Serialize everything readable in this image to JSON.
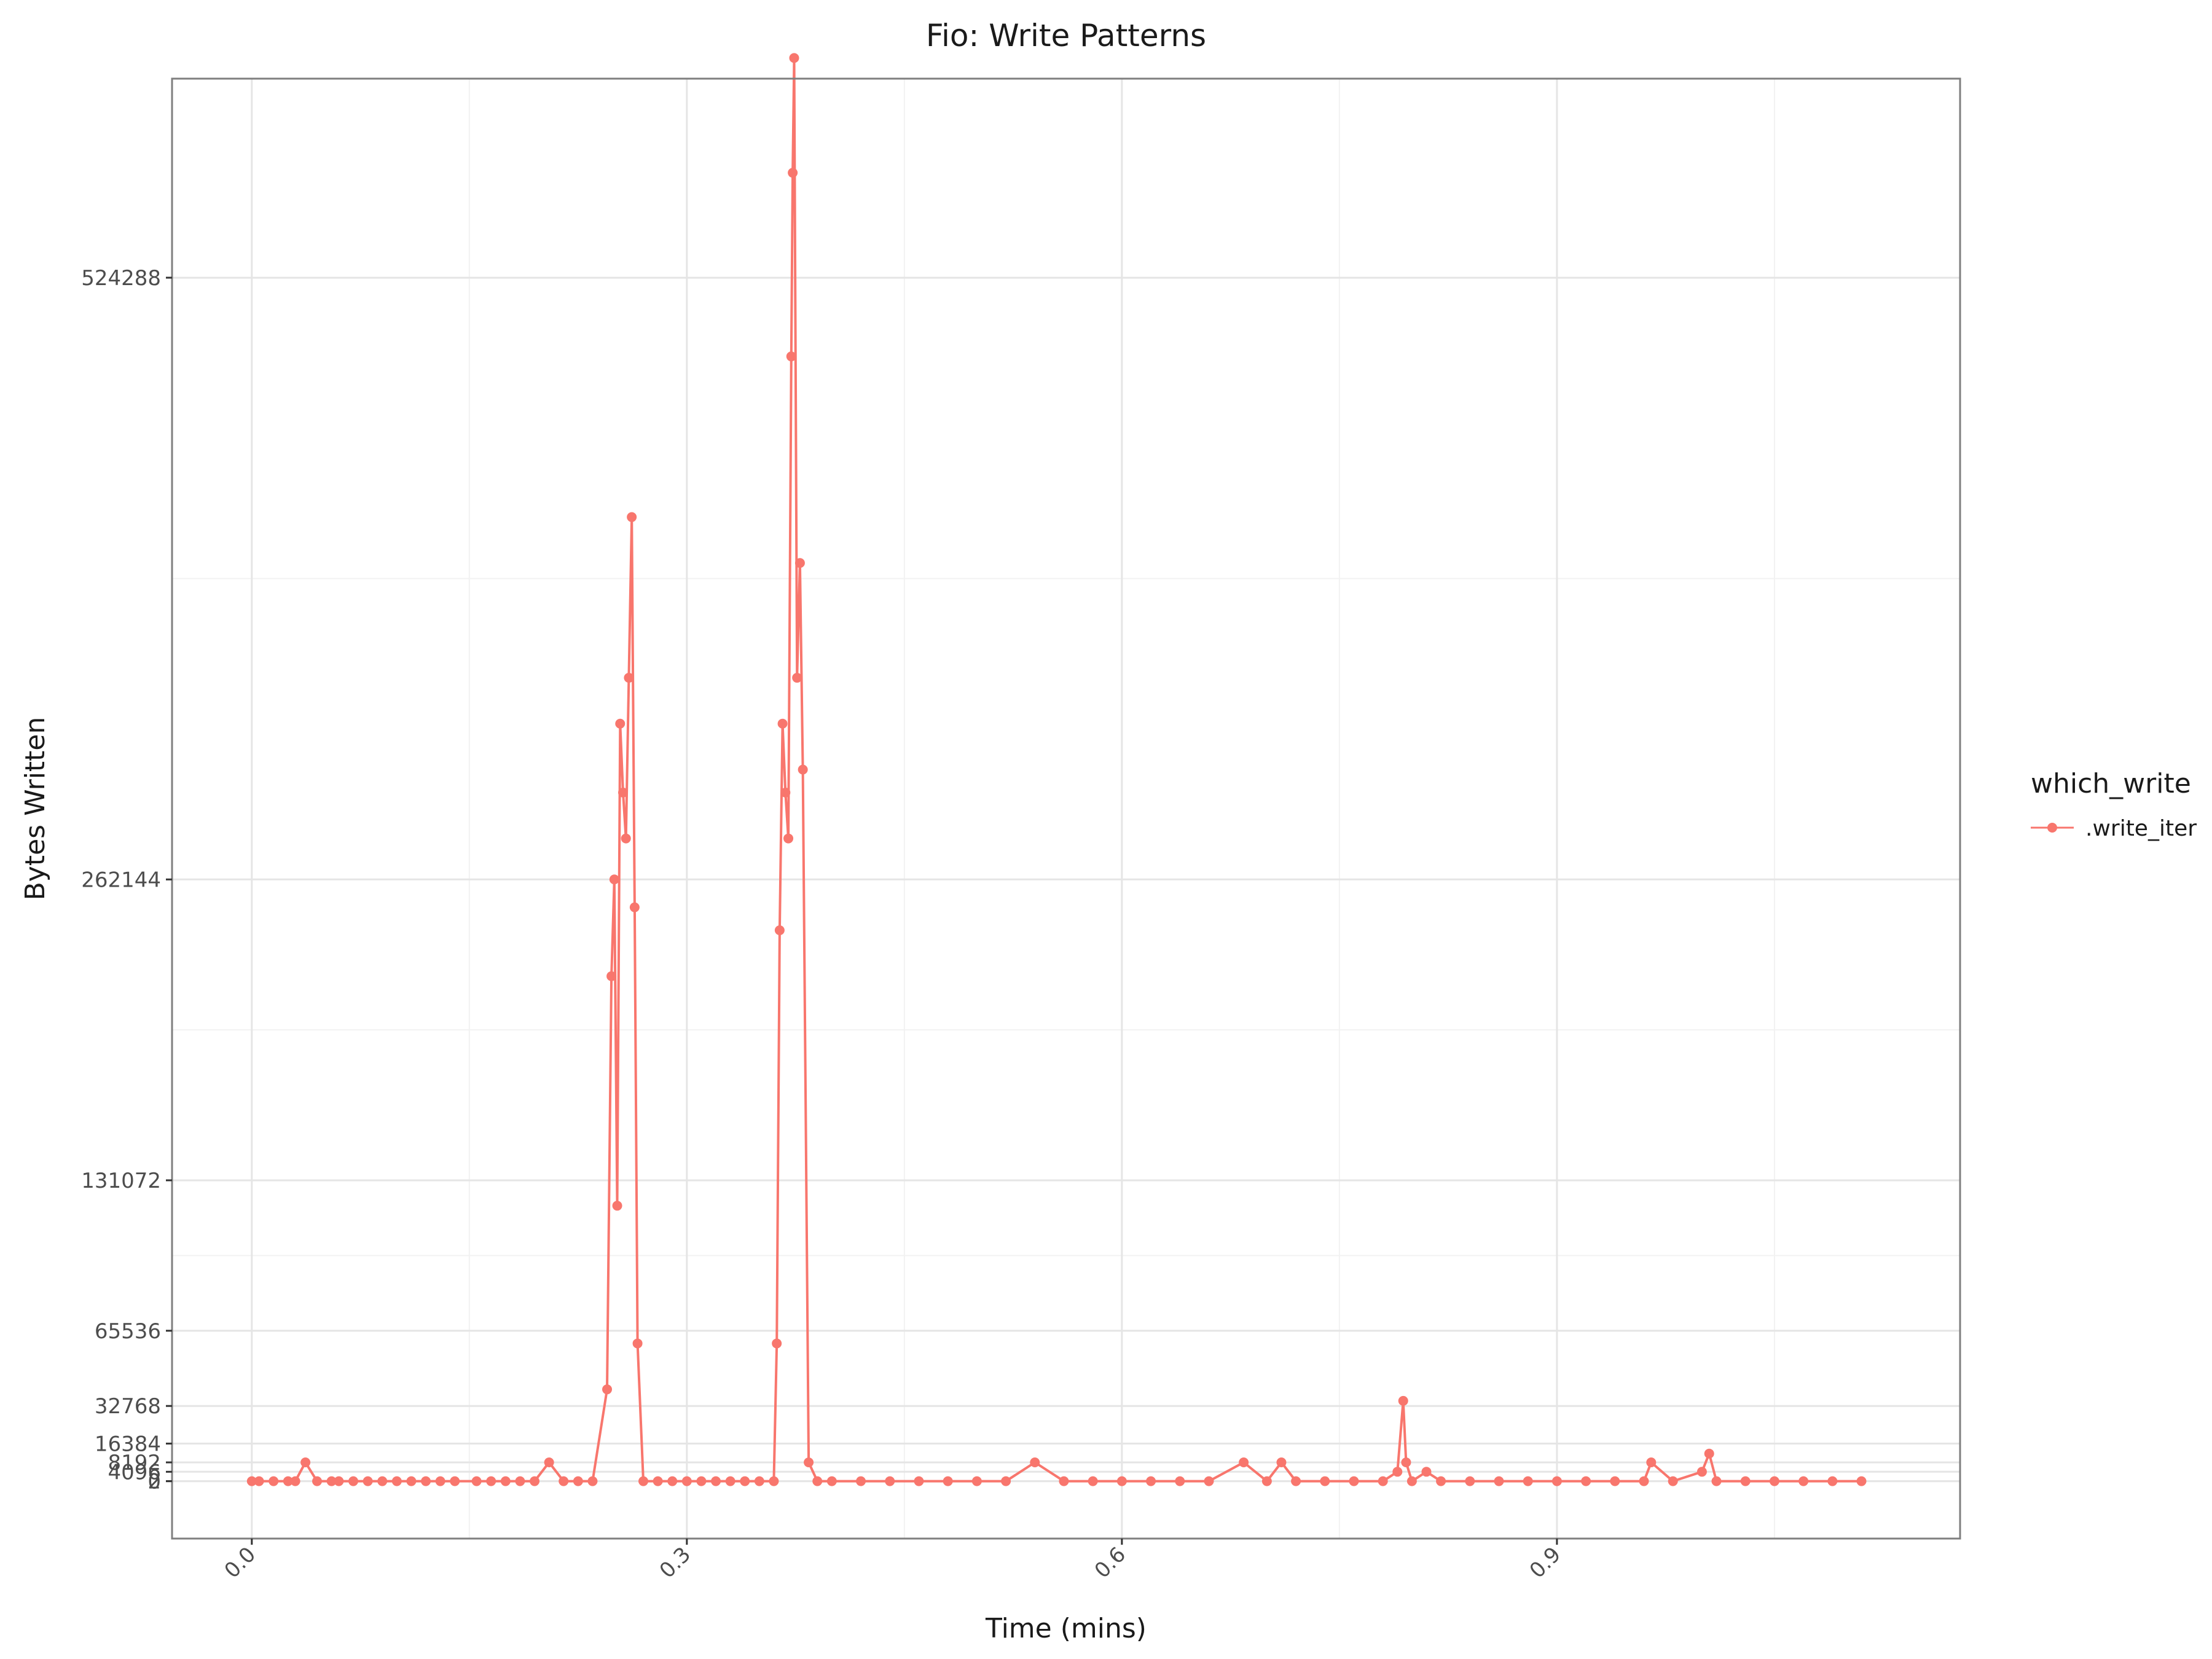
{
  "chart_data": {
    "type": "line",
    "title": "Fio: Write Patterns",
    "xlabel": "Time (mins)",
    "ylabel": "Bytes Written",
    "xlim": [
      -0.055,
      1.178
    ],
    "ylim": [
      -25000,
      611000
    ],
    "x_ticks": [
      0.0,
      0.3,
      0.6,
      0.9
    ],
    "x_tick_labels": [
      "0.0",
      "0.3",
      "0.6",
      "0.9"
    ],
    "y_ticks": [
      0,
      2,
      4096,
      8192,
      16384,
      32768,
      65536,
      131072,
      262144,
      524288
    ],
    "y_tick_labels": [
      "0",
      "2",
      "4096",
      "8192",
      "16384",
      "32768",
      "65536",
      "131072",
      "262144",
      "524288"
    ],
    "grid": true,
    "legend": {
      "title": "which_write",
      "position": "right"
    },
    "series": [
      {
        "name": ".write_iter",
        "color": "#F8766D",
        "x": [
          0.0,
          0.005,
          0.015,
          0.025,
          0.03,
          0.037,
          0.045,
          0.055,
          0.06,
          0.07,
          0.08,
          0.09,
          0.1,
          0.11,
          0.12,
          0.13,
          0.14,
          0.155,
          0.165,
          0.175,
          0.185,
          0.195,
          0.205,
          0.215,
          0.225,
          0.235,
          0.245,
          0.248,
          0.25,
          0.252,
          0.254,
          0.256,
          0.258,
          0.26,
          0.262,
          0.264,
          0.266,
          0.27,
          0.28,
          0.29,
          0.3,
          0.31,
          0.32,
          0.33,
          0.34,
          0.35,
          0.36,
          0.362,
          0.364,
          0.366,
          0.368,
          0.37,
          0.372,
          0.373,
          0.374,
          0.376,
          0.378,
          0.38,
          0.384,
          0.39,
          0.4,
          0.42,
          0.44,
          0.46,
          0.48,
          0.5,
          0.52,
          0.54,
          0.56,
          0.58,
          0.6,
          0.62,
          0.64,
          0.66,
          0.684,
          0.7,
          0.71,
          0.72,
          0.74,
          0.76,
          0.78,
          0.79,
          0.794,
          0.796,
          0.8,
          0.81,
          0.82,
          0.84,
          0.86,
          0.88,
          0.9,
          0.92,
          0.94,
          0.96,
          0.965,
          0.98,
          1.0,
          1.005,
          1.01,
          1.03,
          1.05,
          1.07,
          1.09,
          1.11
        ],
        "y": [
          2,
          0,
          0,
          2,
          2,
          8192,
          0,
          2,
          2,
          0,
          0,
          2,
          0,
          0,
          2,
          0,
          0,
          2,
          2,
          0,
          0,
          2,
          8192,
          0,
          0,
          2,
          40000,
          220000,
          262144,
          120000,
          330000,
          300000,
          280000,
          350000,
          420000,
          250000,
          60000,
          2,
          0,
          2,
          0,
          2,
          0,
          2,
          0,
          0,
          2,
          60000,
          240000,
          330000,
          300000,
          280000,
          490000,
          570000,
          620000,
          350000,
          400000,
          310000,
          8192,
          2,
          0,
          2,
          0,
          2,
          0,
          2,
          0,
          8192,
          2,
          0,
          2,
          0,
          2,
          0,
          8192,
          2,
          8192,
          0,
          2,
          0,
          2,
          4096,
          35000,
          8192,
          2,
          4096,
          2,
          0,
          2,
          0,
          2,
          0,
          2,
          2,
          8192,
          2,
          4096,
          12000,
          2,
          0,
          2,
          0,
          2,
          0
        ]
      }
    ]
  }
}
